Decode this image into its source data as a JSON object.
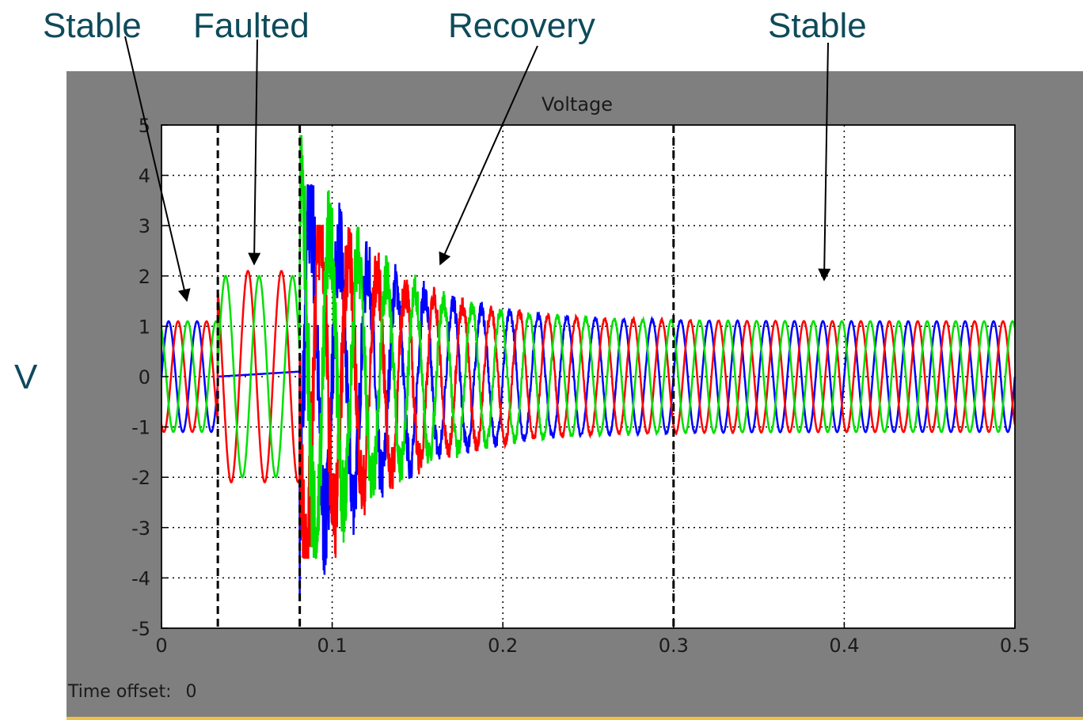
{
  "annotations": {
    "stable_left": "Stable",
    "faulted": "Faulted",
    "recovery": "Recovery",
    "stable_right": "Stable"
  },
  "y_axis_letter": "V",
  "scope": {
    "time_offset_label": "Time offset:",
    "time_offset_value": "0"
  },
  "colors": {
    "phase_a": "#0000ff",
    "phase_b": "#ff0000",
    "phase_c": "#00e000",
    "panel": "#7f7f7f",
    "annotation_text": "#0e4a5a"
  },
  "chart_data": {
    "type": "line",
    "title": "Voltage",
    "xlabel": "",
    "ylabel": "V",
    "xlim": [
      0,
      0.5
    ],
    "ylim": [
      -5,
      5
    ],
    "x_ticks": [
      "0",
      "0.1",
      "0.2",
      "0.3",
      "0.4",
      "0.5"
    ],
    "y_ticks": [
      "5",
      "4",
      "3",
      "2",
      "1",
      "0",
      "-1",
      "-2",
      "-3",
      "-4",
      "-5"
    ],
    "grid": true,
    "frequency_hz": 60,
    "event_markers_x": [
      0.033,
      0.081,
      0.3
    ],
    "regions": [
      {
        "label": "Stable",
        "x_start": 0,
        "x_end": 0.033
      },
      {
        "label": "Faulted",
        "x_start": 0.033,
        "x_end": 0.081
      },
      {
        "label": "Recovery",
        "x_start": 0.081,
        "x_end": 0.3
      },
      {
        "label": "Stable",
        "x_start": 0.3,
        "x_end": 0.5
      }
    ],
    "series": [
      {
        "phase_deg": 0,
        "stable_amplitude": 1.1,
        "faulted_amplitude": 0.05,
        "peak_min": -4.9,
        "peak_max": 3.8
      },
      {
        "phase_deg": -120,
        "stable_amplitude": 1.1,
        "faulted_amplitude": 2.1,
        "peak_min": -3.6,
        "peak_max": 3.0
      },
      {
        "phase_deg": 120,
        "stable_amplitude": 1.1,
        "faulted_amplitude": 2.0,
        "peak_min": -3.6,
        "peak_max": 4.8
      }
    ]
  }
}
